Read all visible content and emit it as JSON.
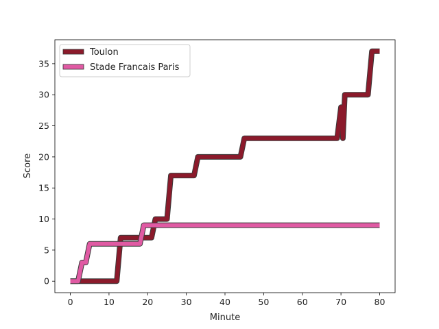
{
  "chart_data": {
    "type": "line",
    "title": "",
    "xlabel": "Minute",
    "ylabel": "Score",
    "xlim": [
      -4,
      84
    ],
    "ylim": [
      -1.85,
      38.85
    ],
    "xticks": [
      0,
      10,
      20,
      30,
      40,
      50,
      60,
      70,
      80
    ],
    "yticks": [
      0,
      5,
      10,
      15,
      20,
      25,
      30,
      35
    ],
    "grid": false,
    "legend_position": "upper-left",
    "series": [
      {
        "name": "Toulon",
        "color": "#8b1a2b",
        "points": [
          [
            0,
            0
          ],
          [
            12,
            0
          ],
          [
            13,
            7
          ],
          [
            21,
            7
          ],
          [
            22,
            10
          ],
          [
            25,
            10
          ],
          [
            26,
            17
          ],
          [
            32,
            17
          ],
          [
            33,
            20
          ],
          [
            44,
            20
          ],
          [
            45,
            23
          ],
          [
            69,
            23
          ],
          [
            70,
            28
          ],
          [
            70.5,
            23
          ],
          [
            71,
            30
          ],
          [
            77,
            30
          ],
          [
            78,
            37
          ],
          [
            80,
            37
          ]
        ]
      },
      {
        "name": "Stade Francais Paris",
        "color": "#e05aa3",
        "points": [
          [
            0,
            0
          ],
          [
            2,
            0
          ],
          [
            3,
            3
          ],
          [
            4,
            3
          ],
          [
            5,
            6
          ],
          [
            18,
            6
          ],
          [
            19,
            9
          ],
          [
            80,
            9
          ]
        ]
      }
    ]
  }
}
